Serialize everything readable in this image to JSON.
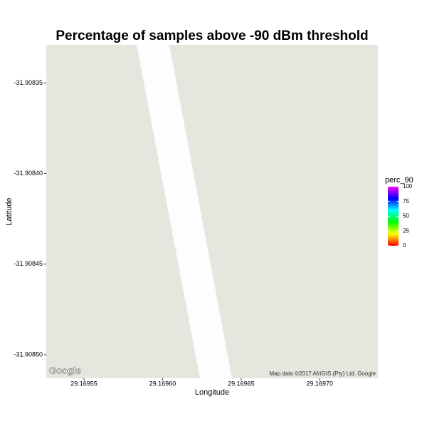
{
  "chart_data": {
    "type": "map",
    "title": "Percentage of samples above -90 dBm threshold",
    "x_label": "Longitude",
    "y_label": "Latitude",
    "xlim": [
      29.169526,
      29.169737
    ],
    "ylim": [
      -31.908513,
      -31.908329
    ],
    "xticks": [
      29.16955,
      {
        "value": 29.1696,
        "label": "29.16960"
      },
      29.16965,
      {
        "value": 29.1697,
        "label": "29.16970"
      }
    ],
    "yticks": [
      -31.90835,
      {
        "value": -31.9084,
        "label": "-31.90840"
      },
      -31.90845,
      {
        "value": -31.9085,
        "label": "-31.90850"
      }
    ],
    "legend": {
      "title": "perc_90",
      "limits": [
        0,
        100
      ],
      "ticks": [
        0,
        25,
        50,
        75,
        100
      ],
      "colors": [
        "#ff0000",
        "#ffff00",
        "#00ff00",
        "#00ffff",
        "#0000ff",
        "#ff00ff"
      ]
    },
    "attribution": "Map data ©2017 AfriGIS (Pty) Ltd, Google",
    "logo": "Google"
  }
}
